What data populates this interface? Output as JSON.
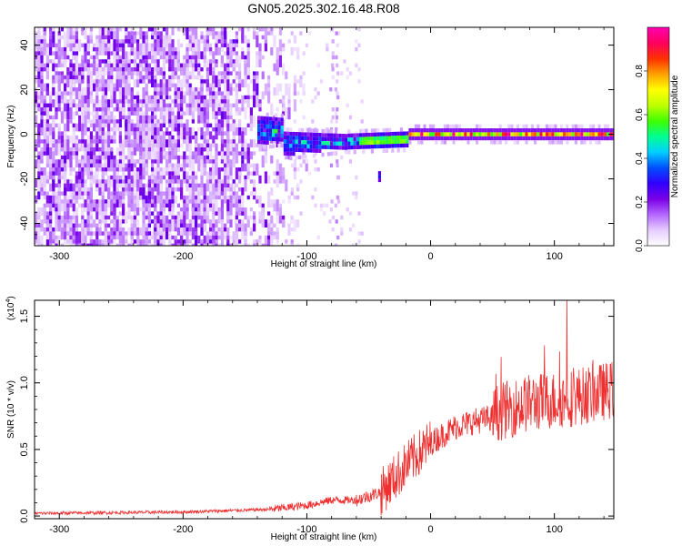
{
  "figure": {
    "title": "GN05.2025.302.16.48.R08"
  },
  "chart_data": [
    {
      "type": "heatmap",
      "name": "spectrogram",
      "xlabel": "Height of straight line (km)",
      "ylabel": "Frequency (Hz)",
      "xlim": [
        -320,
        148
      ],
      "ylim": [
        -50,
        48
      ],
      "xticks": [
        -300,
        -200,
        -100,
        0,
        100
      ],
      "yticks": [
        -40,
        -20,
        0,
        20,
        40
      ],
      "colorbar": {
        "label": "Normalized spectral amplitude",
        "range": [
          0,
          1
        ],
        "ticks": [
          0.0,
          0.2,
          0.4,
          0.6,
          0.8
        ],
        "colors": [
          "#ffffff",
          "#e6ccff",
          "#b366ff",
          "#7a00e6",
          "#3000ff",
          "#0050ff",
          "#00d0ff",
          "#00ff90",
          "#40ff00",
          "#c0ff00",
          "#ffff00",
          "#ffa000",
          "#ff3000",
          "#ff0060",
          "#ff00b0"
        ]
      },
      "features": {
        "noise_region_end_km": -120,
        "scattered_region_end_km": -55,
        "signal_band_start_km": -140,
        "signal_frequency_hz": 0,
        "isolated_blob": {
          "x_km": -41,
          "y_hz": -19
        }
      }
    },
    {
      "type": "line",
      "name": "snr",
      "xlabel": "Height of straight line (km)",
      "ylabel": "SNR (10 * v/v)",
      "multiplier": "(x10",
      "multiplier_exponent": "4",
      "multiplier_close": ")",
      "xlim": [
        -320,
        148
      ],
      "ylim": [
        -0.02,
        1.62
      ],
      "xticks": [
        -300,
        -200,
        -100,
        0,
        100
      ],
      "yticks": [
        "0.0",
        "0.5",
        "1.0",
        "1.5"
      ],
      "line_color": "#ee3030",
      "trend_points": [
        {
          "x": -320,
          "y": 0.02
        },
        {
          "x": -200,
          "y": 0.03
        },
        {
          "x": -130,
          "y": 0.05
        },
        {
          "x": -100,
          "y": 0.08
        },
        {
          "x": -80,
          "y": 0.12
        },
        {
          "x": -60,
          "y": 0.12
        },
        {
          "x": -40,
          "y": 0.18
        },
        {
          "x": -20,
          "y": 0.38
        },
        {
          "x": 0,
          "y": 0.55
        },
        {
          "x": 20,
          "y": 0.67
        },
        {
          "x": 35,
          "y": 0.71
        },
        {
          "x": 50,
          "y": 0.74
        },
        {
          "x": 55,
          "y": 0.78
        },
        {
          "x": 80,
          "y": 0.85
        },
        {
          "x": 110,
          "y": 0.88
        },
        {
          "x": 148,
          "y": 0.95
        }
      ],
      "peak": {
        "x": 110,
        "y": 1.62
      }
    }
  ]
}
